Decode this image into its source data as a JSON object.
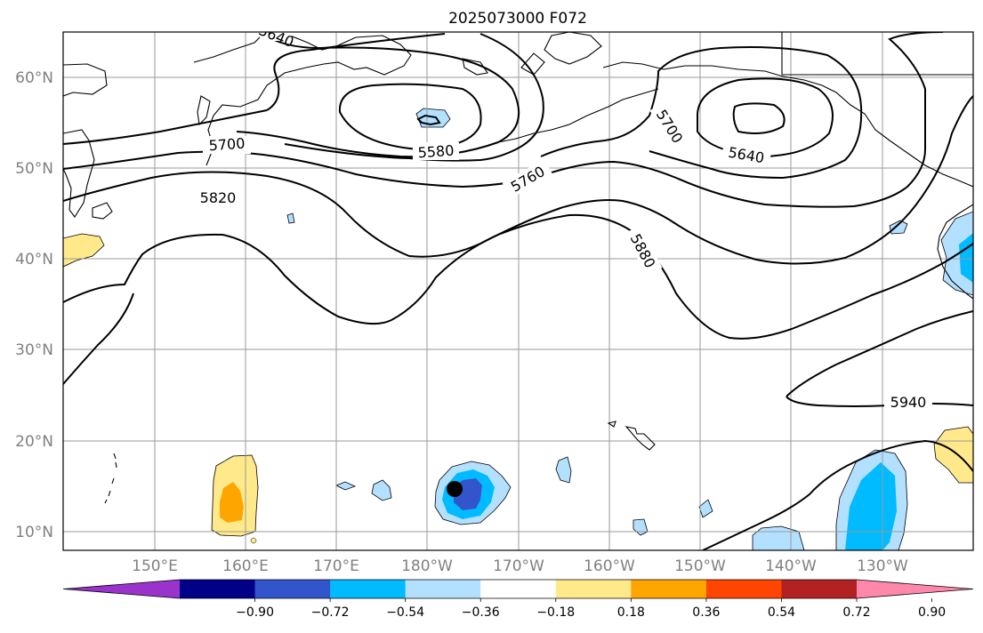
{
  "title": "2025073000 F072",
  "lon_ticks": [
    "150°E",
    "160°E",
    "170°E",
    "180°W",
    "170°W",
    "160°W",
    "150°W",
    "140°W",
    "130°W"
  ],
  "lat_ticks": [
    "60°N",
    "50°N",
    "40°N",
    "30°N",
    "20°N",
    "10°N"
  ],
  "colorbar": {
    "ticks": [
      "−0.90",
      "−0.72",
      "−0.54",
      "−0.36",
      "−0.18",
      "0.18",
      "0.36",
      "0.54",
      "0.72",
      "0.90"
    ],
    "colors": [
      "#9933cc",
      "#000088",
      "#3355cc",
      "#00bbff",
      "#b3e0ff",
      "#ffffff",
      "#ffe98a",
      "#ffa500",
      "#ff4500",
      "#b22222",
      "#ff88aa"
    ]
  },
  "contour_labels": [
    "5640",
    "5580",
    "5700",
    "5700",
    "5640",
    "5760",
    "5820",
    "5880",
    "5940"
  ],
  "colors": {
    "pos_light": "#ffe98a",
    "pos_mid": "#ffa500",
    "neg_light": "#b3e0ff",
    "neg_mid": "#00bbff",
    "neg_dark": "#3355cc"
  }
}
